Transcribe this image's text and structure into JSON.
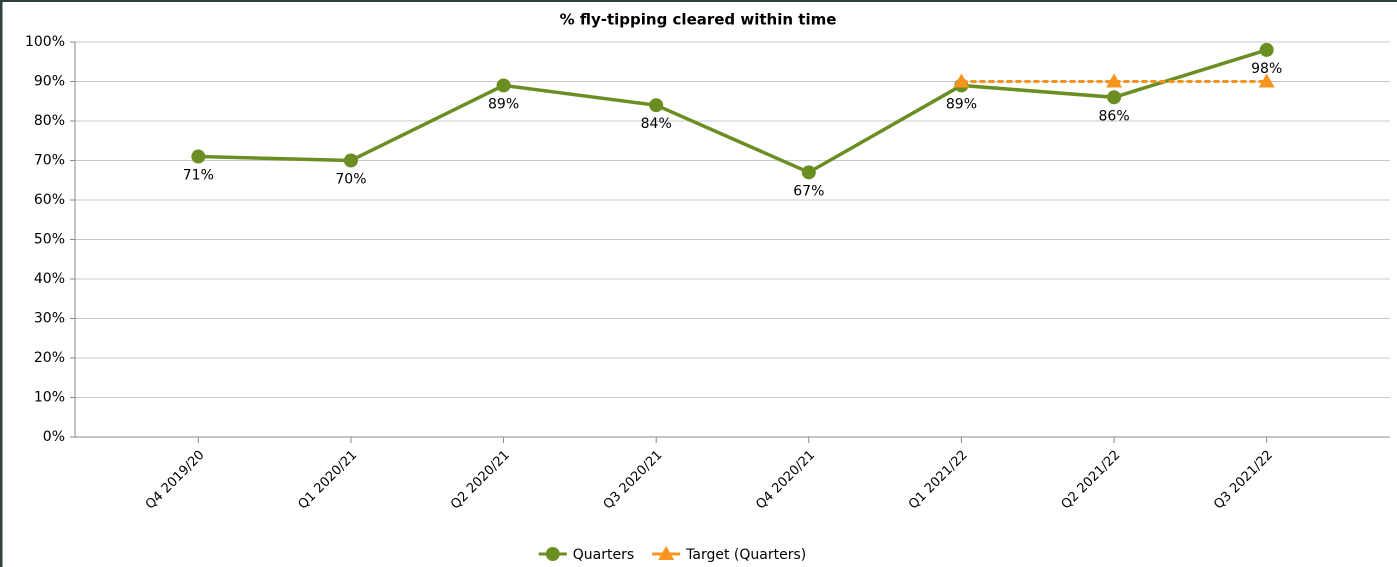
{
  "chart_data": {
    "type": "line",
    "title": "% fly-tipping cleared within time",
    "categories": [
      "Q4 2019/20",
      "Q1 2020/21",
      "Q2 2020/21",
      "Q3 2020/21",
      "Q4 2020/21",
      "Q1 2021/22",
      "Q2 2021/22",
      "Q3 2021/22"
    ],
    "series": [
      {
        "name": "Quarters",
        "color": "#6b8e23",
        "marker": "circle",
        "dash": false,
        "values": [
          71,
          70,
          89,
          84,
          67,
          89,
          86,
          98
        ],
        "value_labels": [
          "71%",
          "70%",
          "89%",
          "84%",
          "67%",
          "89%",
          "86%",
          "98%"
        ]
      },
      {
        "name": "Target (Quarters)",
        "color": "#f7941d",
        "marker": "triangle",
        "dash": true,
        "values": [
          null,
          null,
          null,
          null,
          null,
          90,
          90,
          90
        ]
      }
    ],
    "ylim": [
      0,
      100
    ],
    "yticks": [
      {
        "value": 0,
        "label": "0%"
      },
      {
        "value": 10,
        "label": "10%"
      },
      {
        "value": 20,
        "label": "20%"
      },
      {
        "value": 30,
        "label": "30%"
      },
      {
        "value": 40,
        "label": "40%"
      },
      {
        "value": 50,
        "label": "50%"
      },
      {
        "value": 60,
        "label": "60%"
      },
      {
        "value": 70,
        "label": "70%"
      },
      {
        "value": 80,
        "label": "80%"
      },
      {
        "value": 90,
        "label": "90%"
      },
      {
        "value": 100,
        "label": "100%"
      }
    ],
    "grid": true,
    "legend": "bottom"
  }
}
